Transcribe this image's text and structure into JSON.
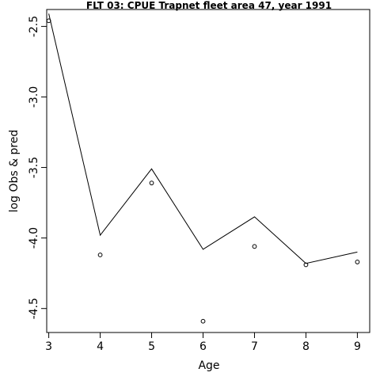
{
  "chart_data": {
    "type": "line",
    "title": "FLT 03: CPUE Trapnet fleet area 47, year 1991",
    "xlabel": "Age",
    "ylabel": "log Obs & pred",
    "x_ticks": [
      "3",
      "4",
      "5",
      "6",
      "7",
      "8",
      "9"
    ],
    "y_ticks": [
      "-2.5",
      "-3.0",
      "-3.5",
      "-4.0",
      "-4.5"
    ],
    "xlim": [
      2.96,
      9.24
    ],
    "ylim": [
      -4.67,
      -2.38
    ],
    "grid": false,
    "legend": "none",
    "series": [
      {
        "style": "line",
        "x": [
          3,
          4,
          5,
          6,
          7,
          8,
          9
        ],
        "y": [
          -2.41,
          -3.98,
          -3.51,
          -4.08,
          -3.85,
          -4.18,
          -4.1
        ]
      },
      {
        "style": "points",
        "x": [
          3,
          4,
          5,
          6,
          7,
          8,
          9
        ],
        "y": [
          -2.46,
          -4.12,
          -3.61,
          -4.59,
          -4.06,
          -4.19,
          -4.17
        ]
      }
    ]
  }
}
